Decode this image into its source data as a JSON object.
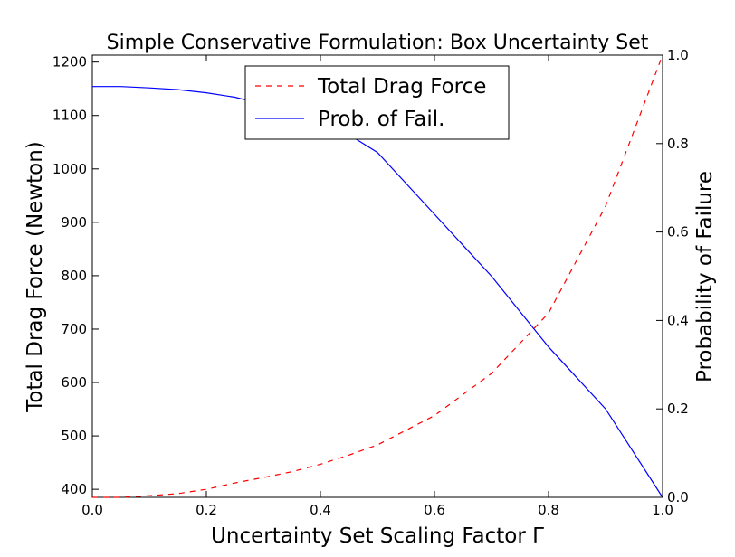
{
  "chart_data": {
    "type": "line",
    "title": "Simple Conservative Formulation: Box Uncertainty Set",
    "xlabel": "Uncertainty Set Scaling Factor Γ",
    "ylabel_left": "Total Drag Force  (Newton)",
    "ylabel_right": "Probability of Failure",
    "xlim": [
      0.0,
      1.0
    ],
    "ylim_left": [
      385,
      1213
    ],
    "ylim_right": [
      0.0,
      1.0
    ],
    "x_ticks": [
      0.0,
      0.2,
      0.4,
      0.6,
      0.8,
      1.0
    ],
    "x_tick_labels": [
      "0.0",
      "0.2",
      "0.4",
      "0.6",
      "0.8",
      "1.0"
    ],
    "y_left_ticks": [
      400,
      500,
      600,
      700,
      800,
      900,
      1000,
      1100,
      1200
    ],
    "y_left_tick_labels": [
      "400",
      "500",
      "600",
      "700",
      "800",
      "900",
      "1000",
      "1100",
      "1200"
    ],
    "y_right_ticks": [
      0.0,
      0.2,
      0.4,
      0.6,
      0.8,
      1.0
    ],
    "y_right_tick_labels": [
      "0.0",
      "0.2",
      "0.4",
      "0.6",
      "0.8",
      "1.0"
    ],
    "grid": false,
    "legend_position": "upper-center",
    "series": [
      {
        "name": "Total Drag Force",
        "axis": "left",
        "color": "#ff0000",
        "style": "dashed",
        "x": [
          0.0,
          0.05,
          0.1,
          0.15,
          0.2,
          0.25,
          0.3,
          0.35,
          0.4,
          0.45,
          0.5,
          0.6,
          0.7,
          0.8,
          0.9,
          1.0
        ],
        "y": [
          385,
          385,
          388,
          392,
          400,
          412,
          422,
          433,
          447,
          464,
          483,
          538,
          617,
          730,
          930,
          1213
        ]
      },
      {
        "name": "Prob. of Fail.",
        "axis": "right",
        "color": "#0000ff",
        "style": "solid",
        "x": [
          0.0,
          0.05,
          0.1,
          0.15,
          0.2,
          0.25,
          0.3,
          0.35,
          0.4,
          0.45,
          0.5,
          0.6,
          0.7,
          0.8,
          0.9,
          1.0
        ],
        "y": [
          0.929,
          0.929,
          0.926,
          0.922,
          0.915,
          0.905,
          0.889,
          0.872,
          0.855,
          0.82,
          0.78,
          0.64,
          0.5,
          0.34,
          0.2,
          0.0
        ]
      }
    ]
  }
}
